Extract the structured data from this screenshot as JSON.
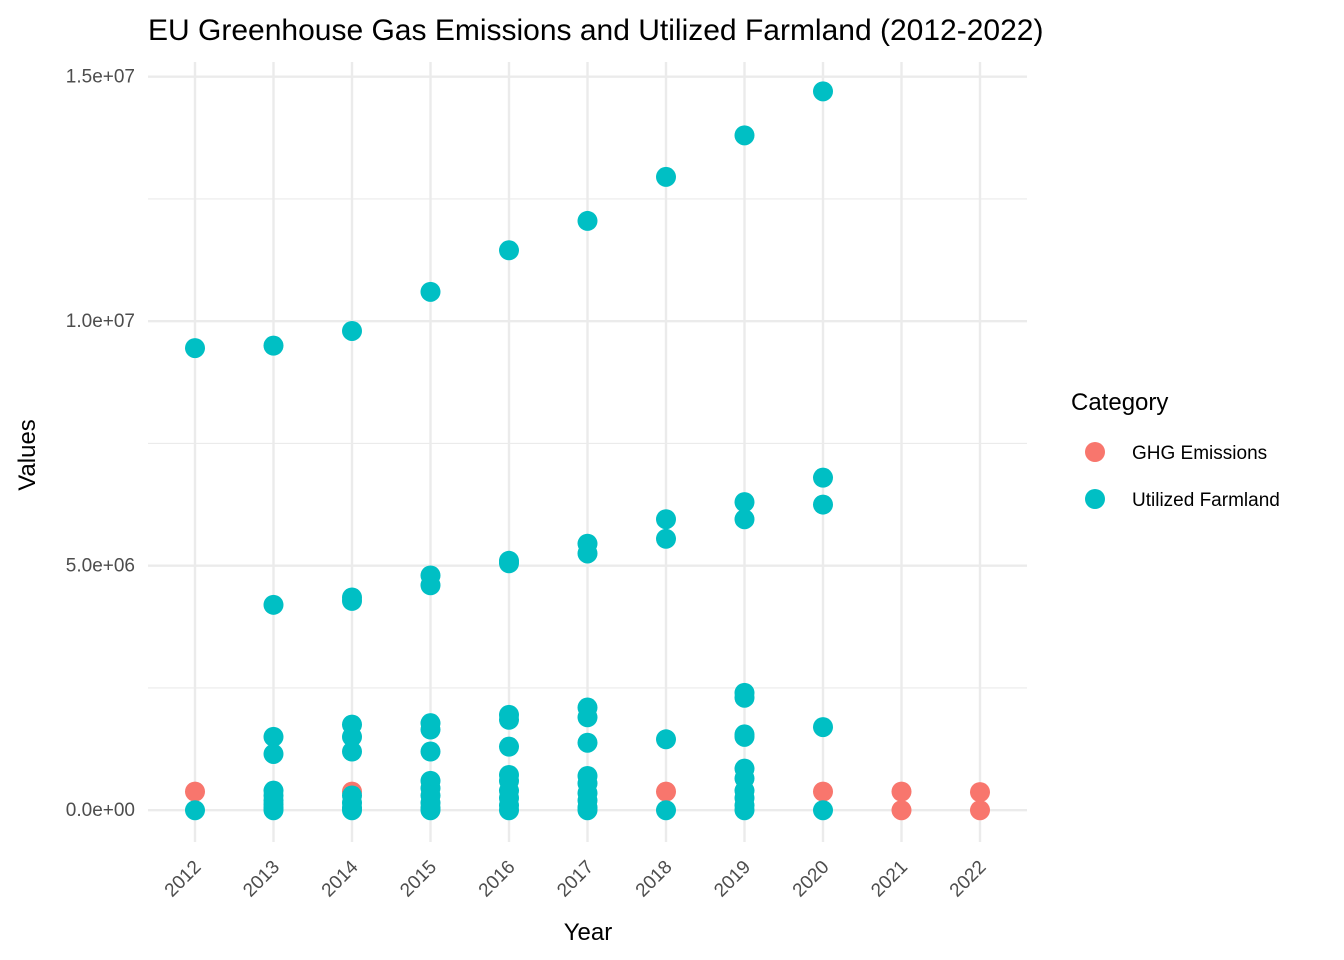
{
  "chart_data": {
    "type": "scatter",
    "title": "EU Greenhouse Gas Emissions and Utilized Farmland (2012-2022)",
    "xlabel": "Year",
    "ylabel": "Values",
    "x_categories": [
      "2012",
      "2013",
      "2014",
      "2015",
      "2016",
      "2017",
      "2018",
      "2019",
      "2020",
      "2021",
      "2022"
    ],
    "ylim": [
      -650000,
      15300000
    ],
    "y_ticks": [
      0,
      5000000,
      10000000,
      15000000
    ],
    "y_tick_labels": [
      "0.0e+00",
      "5.0e+06",
      "1.0e+07",
      "1.5e+07"
    ],
    "y_minor_ticks": [
      2500000,
      7500000,
      12500000
    ],
    "grid": true,
    "legend": {
      "title": "Category",
      "placement": "right",
      "entries": [
        "GHG Emissions",
        "Utilized Farmland"
      ]
    },
    "series": [
      {
        "name": "GHG Emissions",
        "color": "#F8766D",
        "points": [
          [
            "2012",
            380000
          ],
          [
            "2014",
            380000
          ],
          [
            "2018",
            380000
          ],
          [
            "2020",
            380000
          ],
          [
            "2021",
            380000
          ],
          [
            "2021",
            0
          ],
          [
            "2022",
            370000
          ],
          [
            "2022",
            0
          ]
        ]
      },
      {
        "name": "Utilized Farmland",
        "color": "#00BFC4",
        "points": [
          [
            "2012",
            9450000
          ],
          [
            "2012",
            0
          ],
          [
            "2013",
            9500000
          ],
          [
            "2013",
            4200000
          ],
          [
            "2013",
            1500000
          ],
          [
            "2013",
            1150000
          ],
          [
            "2013",
            400000
          ],
          [
            "2013",
            300000
          ],
          [
            "2013",
            200000
          ],
          [
            "2013",
            120000
          ],
          [
            "2013",
            50000
          ],
          [
            "2013",
            0
          ],
          [
            "2014",
            9800000
          ],
          [
            "2014",
            4350000
          ],
          [
            "2014",
            4280000
          ],
          [
            "2014",
            1750000
          ],
          [
            "2014",
            1500000
          ],
          [
            "2014",
            1200000
          ],
          [
            "2014",
            300000
          ],
          [
            "2014",
            150000
          ],
          [
            "2014",
            50000
          ],
          [
            "2014",
            0
          ],
          [
            "2015",
            10600000
          ],
          [
            "2015",
            4800000
          ],
          [
            "2015",
            4600000
          ],
          [
            "2015",
            1780000
          ],
          [
            "2015",
            1650000
          ],
          [
            "2015",
            1200000
          ],
          [
            "2015",
            600000
          ],
          [
            "2015",
            450000
          ],
          [
            "2015",
            300000
          ],
          [
            "2015",
            150000
          ],
          [
            "2015",
            50000
          ],
          [
            "2015",
            0
          ],
          [
            "2016",
            11450000
          ],
          [
            "2016",
            5100000
          ],
          [
            "2016",
            5050000
          ],
          [
            "2016",
            1950000
          ],
          [
            "2016",
            1850000
          ],
          [
            "2016",
            1300000
          ],
          [
            "2016",
            720000
          ],
          [
            "2016",
            600000
          ],
          [
            "2016",
            400000
          ],
          [
            "2016",
            250000
          ],
          [
            "2016",
            100000
          ],
          [
            "2016",
            0
          ],
          [
            "2017",
            12050000
          ],
          [
            "2017",
            5450000
          ],
          [
            "2017",
            5250000
          ],
          [
            "2017",
            2100000
          ],
          [
            "2017",
            1900000
          ],
          [
            "2017",
            1380000
          ],
          [
            "2017",
            700000
          ],
          [
            "2017",
            550000
          ],
          [
            "2017",
            350000
          ],
          [
            "2017",
            200000
          ],
          [
            "2017",
            60000
          ],
          [
            "2017",
            0
          ],
          [
            "2018",
            12950000
          ],
          [
            "2018",
            5950000
          ],
          [
            "2018",
            5550000
          ],
          [
            "2018",
            1450000
          ],
          [
            "2018",
            0
          ],
          [
            "2019",
            13800000
          ],
          [
            "2019",
            6300000
          ],
          [
            "2019",
            5950000
          ],
          [
            "2019",
            2400000
          ],
          [
            "2019",
            2300000
          ],
          [
            "2019",
            1550000
          ],
          [
            "2019",
            1500000
          ],
          [
            "2019",
            850000
          ],
          [
            "2019",
            650000
          ],
          [
            "2019",
            400000
          ],
          [
            "2019",
            250000
          ],
          [
            "2019",
            100000
          ],
          [
            "2019",
            0
          ],
          [
            "2020",
            14700000
          ],
          [
            "2020",
            6800000
          ],
          [
            "2020",
            6250000
          ],
          [
            "2020",
            1700000
          ],
          [
            "2020",
            0
          ]
        ]
      }
    ]
  }
}
